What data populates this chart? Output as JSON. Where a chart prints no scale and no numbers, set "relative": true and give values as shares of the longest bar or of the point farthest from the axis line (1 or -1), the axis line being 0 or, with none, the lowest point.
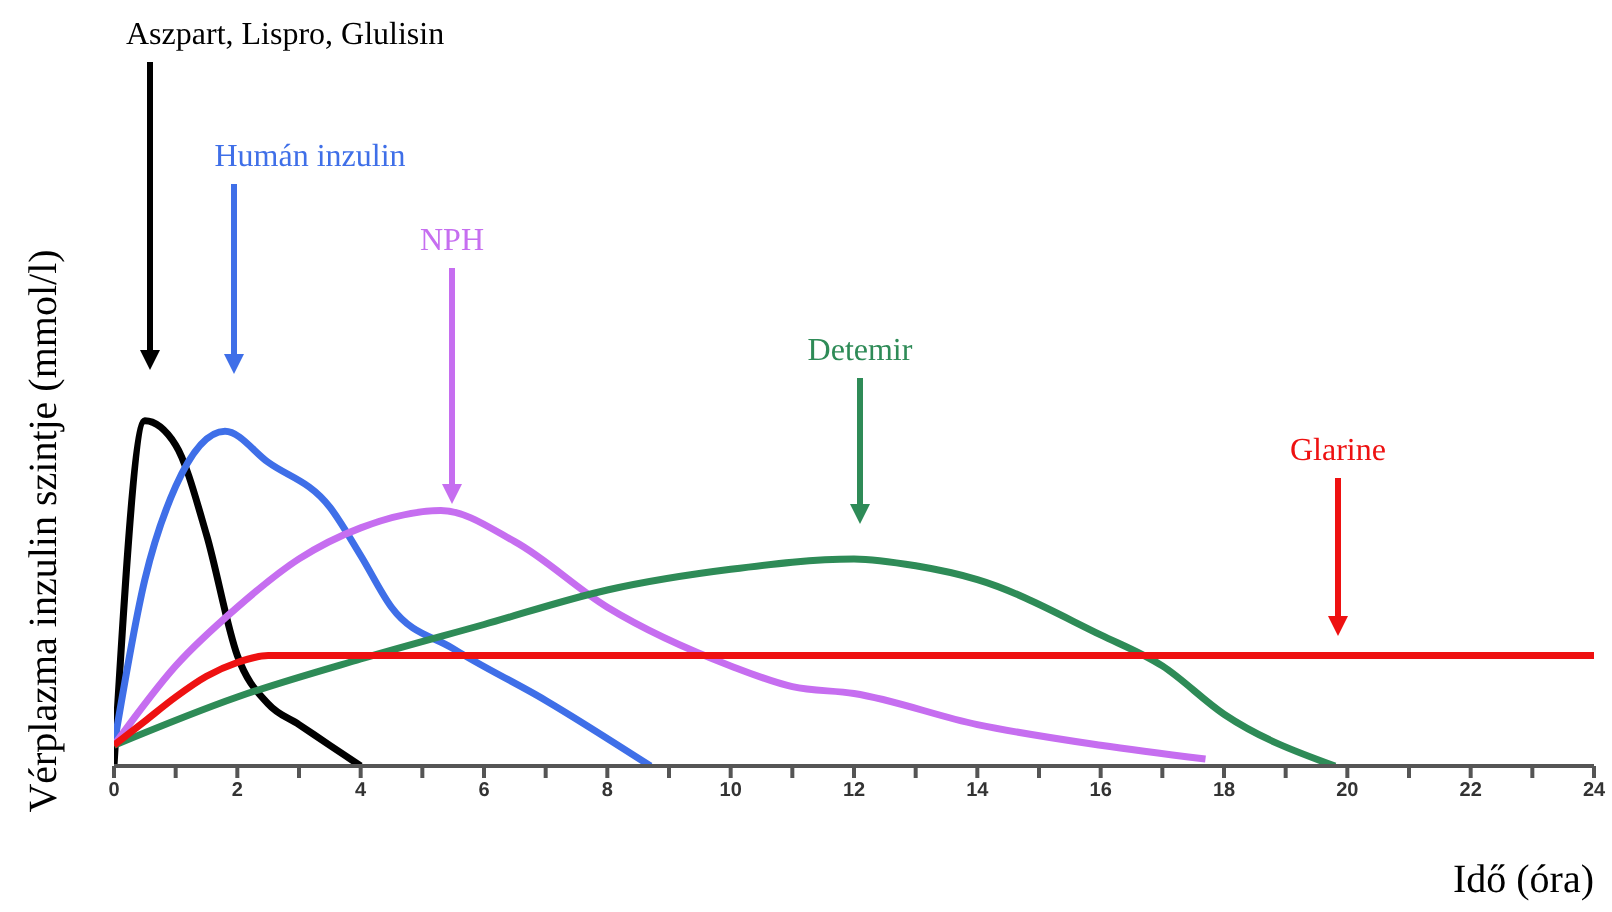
{
  "chart_data": {
    "type": "line",
    "relative": true,
    "xlabel": "Idő (óra)",
    "ylabel": "Vérplazma inzulin szintje (mmol/l)",
    "xlim": [
      0,
      24
    ],
    "xticks": [
      0,
      {
        "value": 1,
        "label": null
      },
      2,
      {
        "value": 3,
        "label": null
      },
      4,
      {
        "value": 5,
        "label": null
      },
      6,
      {
        "value": 7,
        "label": null
      },
      8,
      {
        "value": 9,
        "label": null
      },
      10,
      {
        "value": 11,
        "label": null
      },
      12,
      {
        "value": 13,
        "label": null
      },
      14,
      {
        "value": 15,
        "label": null
      },
      16,
      {
        "value": 17,
        "label": null
      },
      18,
      {
        "value": 19,
        "label": null
      },
      20,
      {
        "value": 21,
        "label": null
      },
      22,
      {
        "value": 23,
        "label": null
      },
      24
    ],
    "series": [
      {
        "color": "#000000",
        "x": [
          0,
          0.5,
          1,
          1.5,
          2,
          2.5,
          3,
          3.5,
          4
        ],
        "values": [
          0,
          1,
          0.93,
          0.67,
          0.32,
          0.18,
          0.12,
          0.06,
          0
        ]
      },
      {
        "color": "#3f6fe8",
        "x": [
          0,
          0.5,
          1,
          1.8,
          2.5,
          3.5,
          4,
          4.5,
          5.5,
          7,
          8.7
        ],
        "values": [
          0.06,
          0.54,
          0.81,
          0.97,
          0.88,
          0.75,
          0.61,
          0.46,
          0.34,
          0.19,
          0
        ]
      },
      {
        "color": "#c66ef0",
        "x": [
          0,
          1,
          2,
          3,
          4,
          5.3,
          6.5,
          8,
          10,
          11,
          12,
          14,
          16,
          17.7
        ],
        "values": [
          0.06,
          0.29,
          0.46,
          0.6,
          0.69,
          0.74,
          0.65,
          0.46,
          0.29,
          0.23,
          0.21,
          0.12,
          0.06,
          0.02
        ]
      },
      {
        "color": "#2e8b57",
        "x": [
          0,
          2,
          4,
          6,
          8,
          10,
          12,
          13,
          14,
          16,
          17,
          18,
          19.8
        ],
        "values": [
          0.06,
          0.2,
          0.31,
          0.41,
          0.51,
          0.57,
          0.6,
          0.58,
          0.54,
          0.38,
          0.29,
          0.15,
          0
        ]
      },
      {
        "color": "#ee1111",
        "x": [
          0,
          0.5,
          1,
          1.5,
          2,
          2.5,
          3,
          24
        ],
        "values": [
          0.06,
          0.13,
          0.2,
          0.26,
          0.3,
          0.32,
          0.32,
          0.32
        ]
      }
    ],
    "annotations": [
      "Aszpart, Lispro, Glulisin",
      "Humán inzulin",
      "NPH",
      "Detemir",
      "Glarine"
    ]
  }
}
